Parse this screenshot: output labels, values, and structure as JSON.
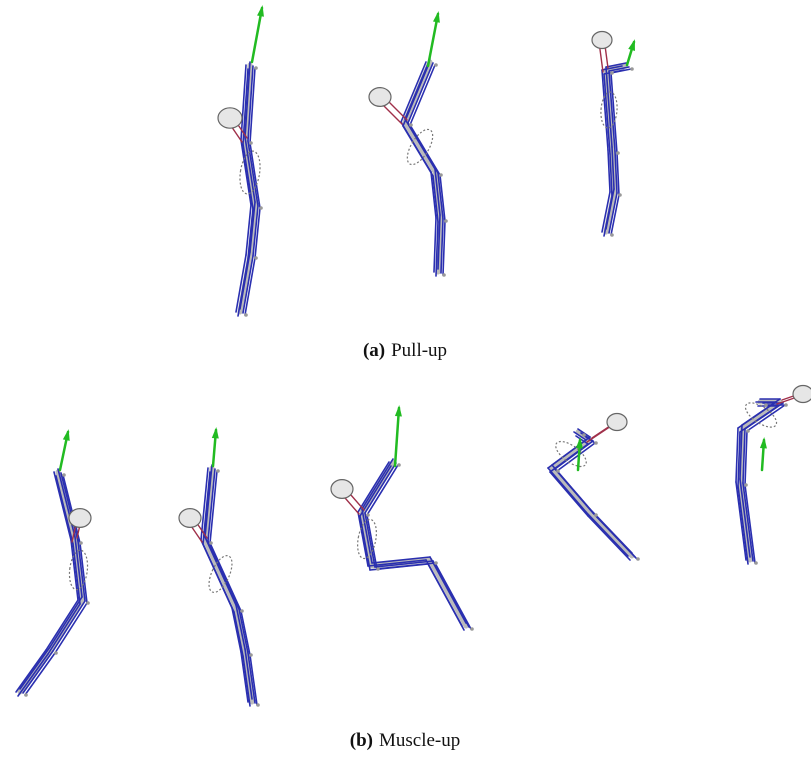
{
  "figure": {
    "subfigures": [
      {
        "label": "(a)",
        "caption": "Pull-up"
      },
      {
        "label": "(b)",
        "caption": "Muscle-up"
      }
    ]
  }
}
